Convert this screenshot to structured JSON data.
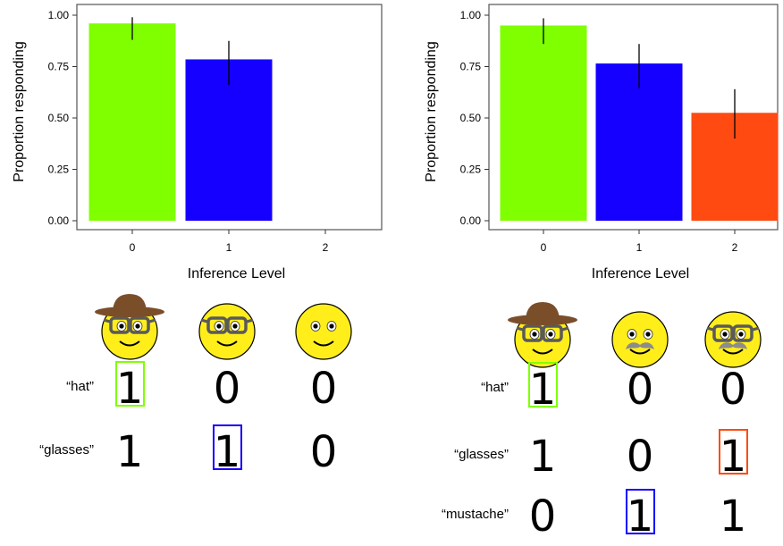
{
  "chart_data": [
    {
      "type": "bar",
      "categories": [
        "0",
        "1",
        "2"
      ],
      "values": [
        0.96,
        0.785,
        null
      ],
      "error_low": [
        0.88,
        0.66,
        null
      ],
      "error_high": [
        0.99,
        0.875,
        null
      ],
      "colors": [
        "#7fff00",
        "#1500ff",
        "#ff4a12"
      ],
      "ylim": [
        0,
        1.05
      ],
      "yticks": [
        "0.00",
        "0.25",
        "0.50",
        "0.75",
        "1.00"
      ],
      "xlabel": "Inference Level",
      "ylabel": "Proportion responding",
      "grid": false
    },
    {
      "type": "bar",
      "categories": [
        "0",
        "1",
        "2"
      ],
      "values": [
        0.95,
        0.765,
        0.525
      ],
      "error_low": [
        0.86,
        0.645,
        0.4
      ],
      "error_high": [
        0.985,
        0.86,
        0.64
      ],
      "colors": [
        "#7fff00",
        "#1500ff",
        "#ff4a12"
      ],
      "ylim": [
        0,
        1.05
      ],
      "yticks": [
        "0.00",
        "0.25",
        "0.50",
        "0.75",
        "1.00"
      ],
      "xlabel": "Inference Level",
      "ylabel": "Proportion responding",
      "grid": false
    }
  ],
  "tables": [
    {
      "faces": [
        {
          "features": [
            "hat",
            "glasses"
          ]
        },
        {
          "features": [
            "glasses"
          ]
        },
        {
          "features": []
        }
      ],
      "rows": [
        {
          "label": "“hat”",
          "values": [
            "1",
            "0",
            "0"
          ],
          "boxed": 0,
          "box_color": "#7fff00"
        },
        {
          "label": "“glasses”",
          "values": [
            "1",
            "1",
            "0"
          ],
          "boxed": 1,
          "box_color": "#1500ff"
        }
      ]
    },
    {
      "faces": [
        {
          "features": [
            "hat",
            "glasses"
          ]
        },
        {
          "features": [
            "mustache"
          ]
        },
        {
          "features": [
            "glasses",
            "mustache"
          ]
        }
      ],
      "rows": [
        {
          "label": "“hat”",
          "values": [
            "1",
            "0",
            "0"
          ],
          "boxed": 0,
          "box_color": "#7fff00"
        },
        {
          "label": "“glasses”",
          "values": [
            "1",
            "0",
            "1"
          ],
          "boxed": 2,
          "box_color": "#ff4a12"
        },
        {
          "label": "“mustache”",
          "values": [
            "0",
            "1",
            "1"
          ],
          "boxed": 1,
          "box_color": "#1500ff"
        }
      ]
    }
  ],
  "icons": {
    "face": "smiley-face-icon",
    "hat": "brown-hat-icon",
    "glasses": "glasses-icon",
    "mustache": "gray-mustache-icon"
  }
}
